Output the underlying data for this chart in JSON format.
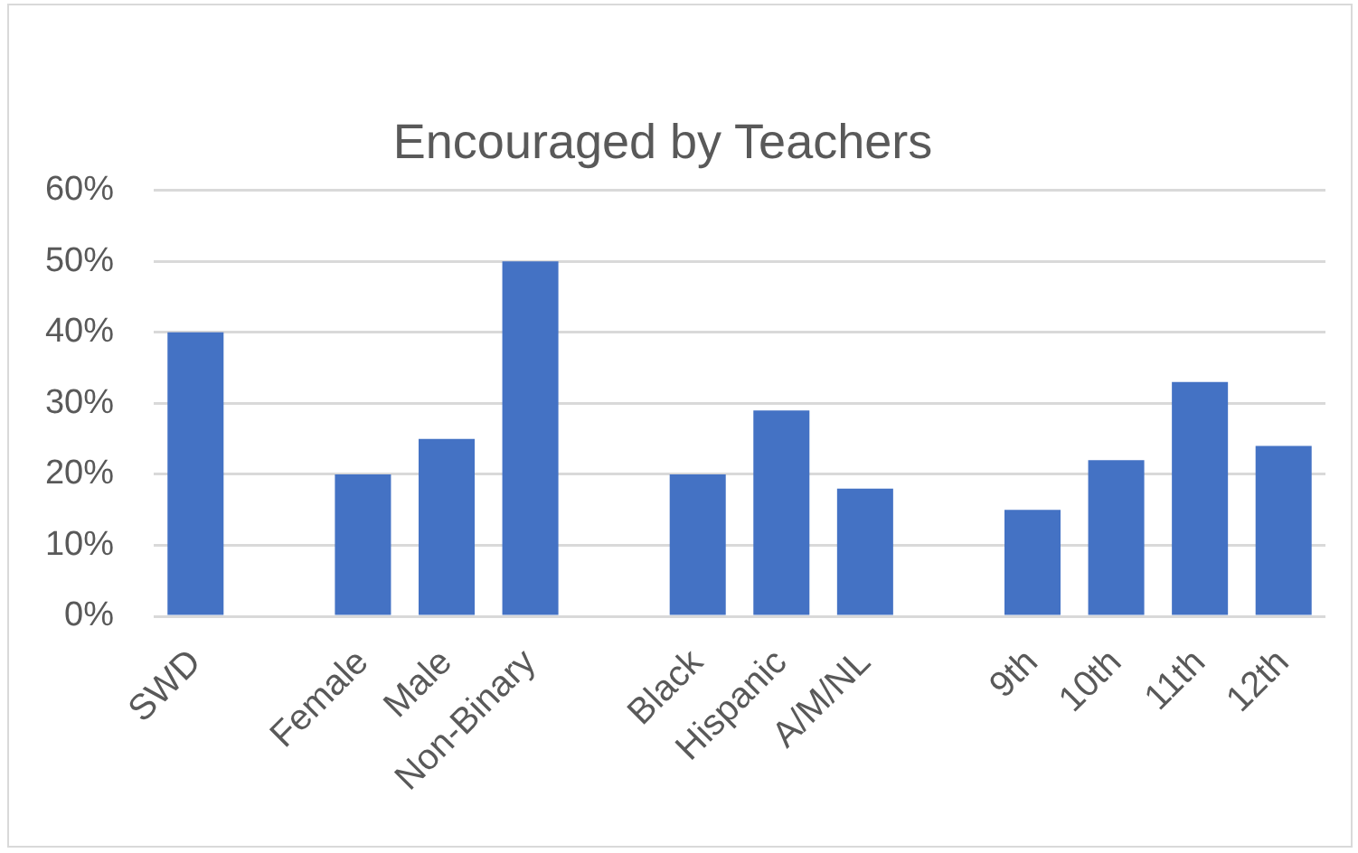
{
  "chart_data": {
    "type": "bar",
    "title": "Encouraged by Teachers",
    "categories": [
      "SWD",
      null,
      "Female",
      "Male",
      "Non-Binary",
      null,
      "Black",
      "Hispanic",
      "A/M/NL",
      null,
      "9th",
      "10th",
      "11th",
      "12th"
    ],
    "values": [
      40,
      null,
      20,
      25,
      50,
      null,
      20,
      29,
      18,
      null,
      15,
      22,
      33,
      24
    ],
    "color": "#4472c4",
    "ylim": [
      0,
      60
    ],
    "yticks": [
      {
        "value": 0,
        "label": "0%"
      },
      {
        "value": 10,
        "label": "10%"
      },
      {
        "value": 20,
        "label": "20%"
      },
      {
        "value": 30,
        "label": "30%"
      },
      {
        "value": 40,
        "label": "40%"
      },
      {
        "value": 50,
        "label": "50%"
      },
      {
        "value": 60,
        "label": "60%"
      }
    ],
    "grid": "y"
  }
}
